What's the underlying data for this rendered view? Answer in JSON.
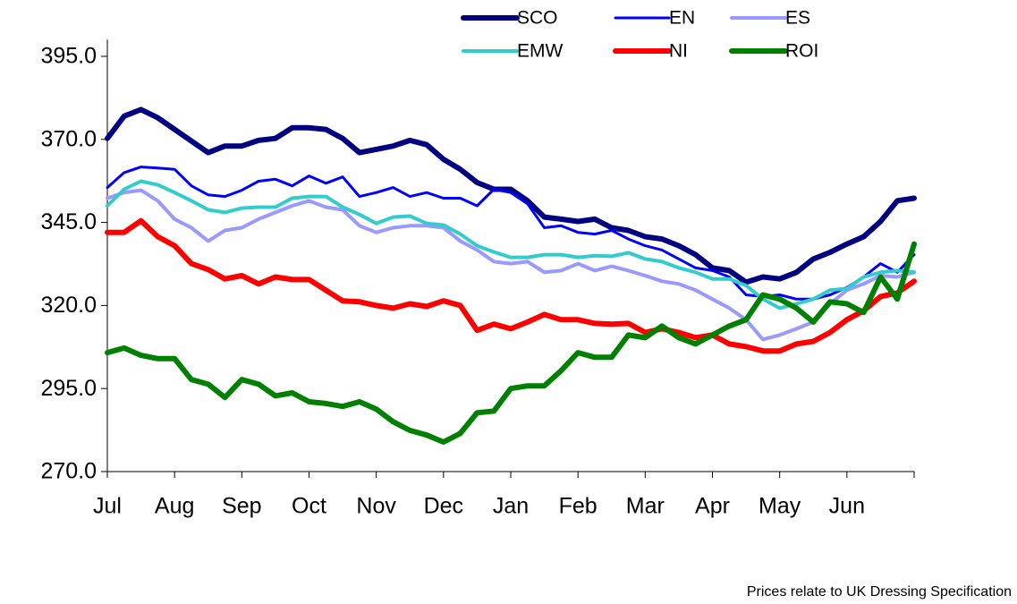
{
  "chart_data": {
    "type": "line",
    "note": "Prices relate to UK Dressing Specification",
    "categories": [
      "Jul",
      null,
      null,
      null,
      "Aug",
      null,
      null,
      null,
      "Sep",
      null,
      null,
      null,
      "Oct",
      null,
      null,
      null,
      "Nov",
      null,
      null,
      null,
      "Dec",
      null,
      null,
      null,
      "Jan",
      null,
      null,
      null,
      "Feb",
      null,
      null,
      null,
      "Mar",
      null,
      null,
      null,
      "Apr",
      null,
      null,
      null,
      "May",
      null,
      null,
      null,
      "Jun",
      null,
      null,
      null,
      null
    ],
    "ylim": [
      270,
      400
    ],
    "yticks": [
      {
        "value": 270,
        "label": "270.0"
      },
      {
        "value": 295,
        "label": "295.0"
      },
      {
        "value": 320,
        "label": "320.0"
      },
      {
        "value": 345,
        "label": "345.0"
      },
      {
        "value": 370,
        "label": "370.0"
      },
      {
        "value": 395,
        "label": "395.0"
      }
    ],
    "grid": false,
    "legend": "top",
    "series": [
      {
        "name": "SCO",
        "color": "#000080",
        "line_width": 6,
        "values": [
          370.3,
          377,
          379,
          376.5,
          373,
          369.5,
          366,
          368,
          368,
          369.7,
          370.3,
          373.5,
          373.5,
          373,
          370.3,
          366,
          367,
          368,
          369.7,
          368.4,
          364,
          361,
          357,
          355,
          355,
          351.5,
          346.6,
          346,
          345.3,
          346,
          343.4,
          342.6,
          340.7,
          340,
          338,
          335.3,
          331.3,
          330.5,
          327,
          328.6,
          328,
          330,
          334,
          336,
          338.5,
          340.7,
          345.3,
          351.5,
          352.3
        ]
      },
      {
        "name": "EN",
        "color": "#0000ff",
        "line_width": 3,
        "values": [
          355.5,
          360,
          361.7,
          361.4,
          361,
          356,
          353.3,
          352.8,
          354.7,
          357.4,
          358,
          356,
          359,
          356.8,
          358.7,
          352.8,
          354,
          355.5,
          352.8,
          354,
          352.3,
          352.3,
          350,
          355,
          354,
          350.6,
          343.4,
          344,
          342,
          341.5,
          342.6,
          340,
          338,
          336.7,
          334,
          331.3,
          330.5,
          328.6,
          323.2,
          322.7,
          323.2,
          321.9,
          321.9,
          323.2,
          325.4,
          328.6,
          332.6,
          330,
          335.3
        ]
      },
      {
        "name": "ES",
        "color": "#9999ff",
        "line_width": 4,
        "values": [
          352.3,
          354,
          354.7,
          351.5,
          346,
          343.4,
          339.4,
          342.6,
          343.4,
          346,
          348,
          350,
          351.5,
          349.6,
          348.8,
          344,
          342,
          343.4,
          344,
          344,
          343.4,
          339.4,
          336.7,
          333.2,
          332.6,
          333.2,
          330,
          330.5,
          332.6,
          330.5,
          331.8,
          330.5,
          329,
          327.3,
          326.5,
          324.6,
          321.9,
          319.2,
          315.7,
          309.8,
          311.1,
          313,
          315,
          320.5,
          324.6,
          326.5,
          329,
          328.6,
          330
        ]
      },
      {
        "name": "EMW",
        "color": "#33cccc",
        "line_width": 4,
        "values": [
          350,
          355,
          357.4,
          356.3,
          354,
          351.5,
          348.8,
          348,
          349.3,
          349.6,
          349.6,
          352.3,
          352.8,
          352.8,
          349.6,
          347.4,
          344.7,
          346.6,
          346.9,
          344.7,
          344.2,
          341.5,
          338,
          336.1,
          334.5,
          334.5,
          335.3,
          335.3,
          334.5,
          335,
          334.8,
          335.9,
          334,
          333.2,
          331.3,
          330,
          328,
          328,
          326,
          321.9,
          319.2,
          320.5,
          321.9,
          324.6,
          325.1,
          328.6,
          330,
          330.5,
          330
        ]
      },
      {
        "name": "NI",
        "color": "#ff0000",
        "line_width": 6,
        "values": [
          342,
          342,
          345.5,
          340.7,
          338,
          332.6,
          330.8,
          328,
          329,
          326.5,
          328.6,
          327.8,
          327.8,
          324.6,
          321.4,
          321.1,
          320,
          319.2,
          320.5,
          319.7,
          321.4,
          320,
          312.5,
          314.4,
          313,
          315,
          317.3,
          315.7,
          315.7,
          314.6,
          314.4,
          314.6,
          311.9,
          313,
          311.9,
          310.3,
          311.1,
          308.4,
          307.6,
          306.3,
          306.3,
          308.4,
          309.2,
          311.9,
          315.7,
          318.4,
          322.7,
          323.8,
          327.3
        ]
      },
      {
        "name": "ROI",
        "color": "#008000",
        "line_width": 6,
        "values": [
          305.8,
          307.2,
          305,
          304,
          304,
          297.7,
          296.3,
          292.3,
          297.7,
          296.3,
          292.8,
          293.7,
          291,
          290.5,
          289.6,
          291,
          288.8,
          285,
          282.4,
          281,
          278.9,
          281.5,
          287.7,
          288.2,
          295,
          295.8,
          295.8,
          300.4,
          305.8,
          304.4,
          304.4,
          311.1,
          310.3,
          313.8,
          310.3,
          308.4,
          311.1,
          313.8,
          315.7,
          323.2,
          321.9,
          319.2,
          315,
          321.1,
          320.5,
          317.9,
          328.6,
          321.9,
          338.5
        ]
      }
    ]
  }
}
